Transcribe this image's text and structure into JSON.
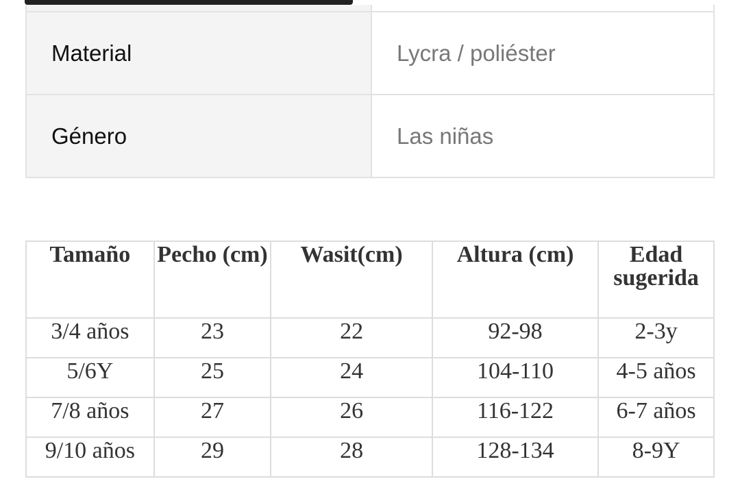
{
  "specs": [
    {
      "key": "Material",
      "value": "Lycra / poliéster"
    },
    {
      "key": "Género",
      "value": "Las niñas"
    }
  ],
  "size_table": {
    "headers": [
      "Tamaño",
      "Pecho (cm)",
      "Wasit(cm)",
      "Altura (cm)",
      "Edad sugerida"
    ],
    "rows": [
      [
        "3/4 años",
        "23",
        "22",
        "92-98",
        "2-3y"
      ],
      [
        "5/6Y",
        "25",
        "24",
        "104-110",
        "4-5 años"
      ],
      [
        "7/8 años",
        "27",
        "26",
        "116-122",
        "6-7 años"
      ],
      [
        "9/10 años",
        "29",
        "28",
        "128-134",
        "8-9Y"
      ]
    ]
  }
}
